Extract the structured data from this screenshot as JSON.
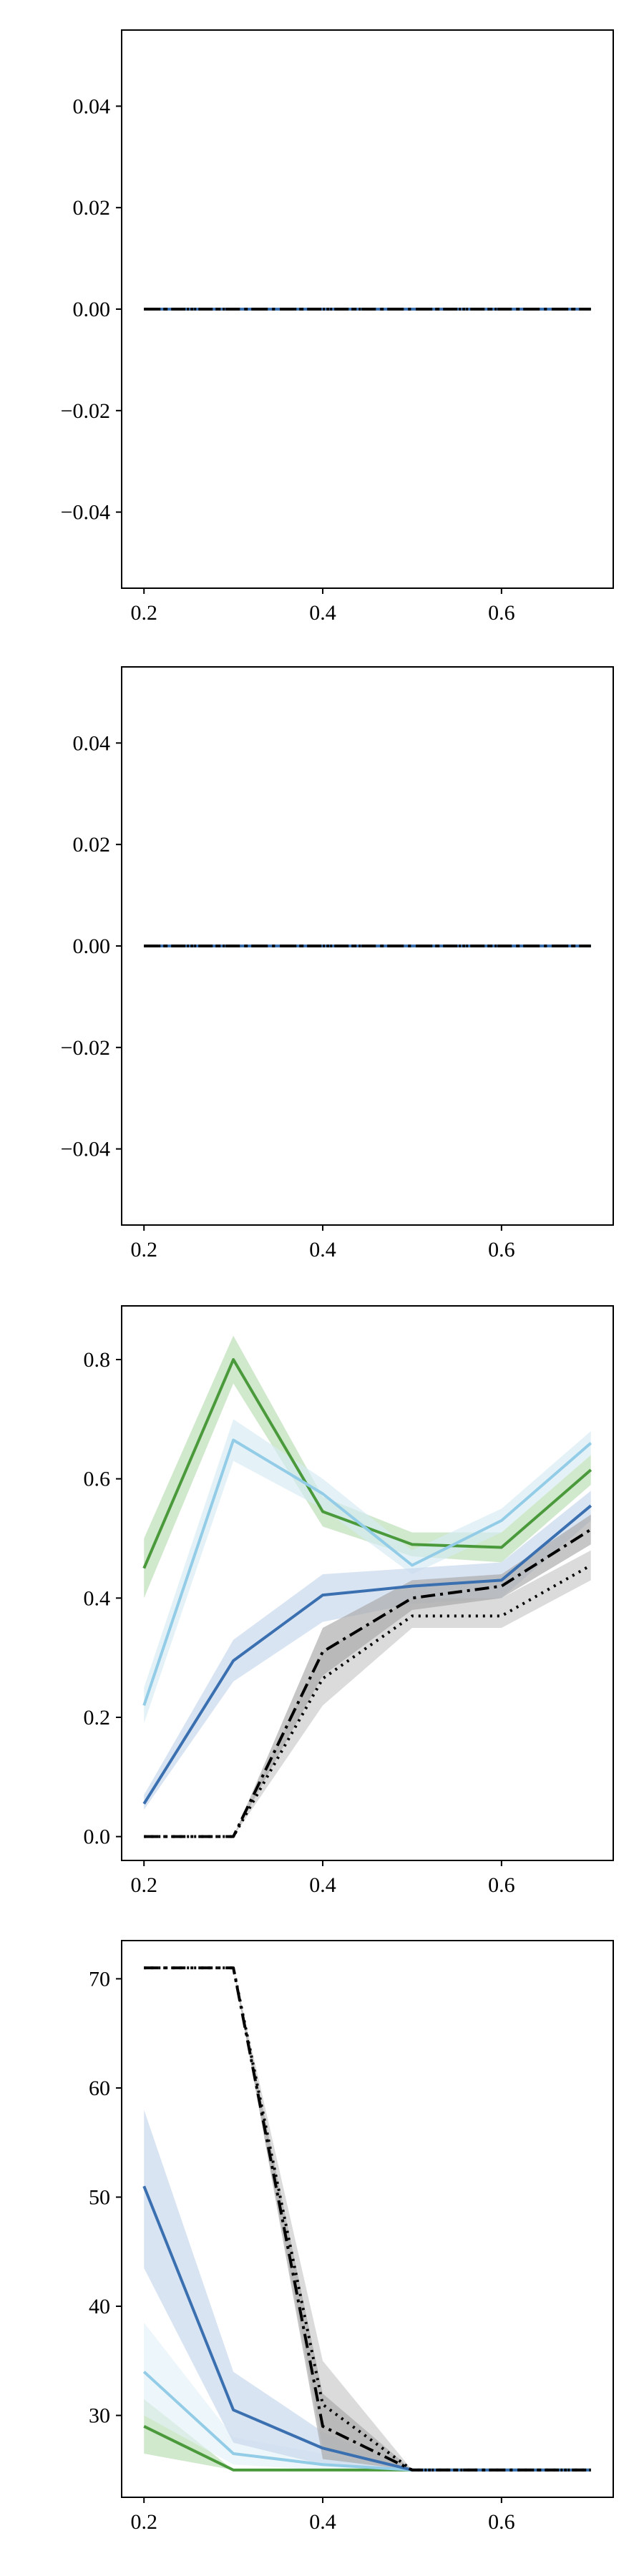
{
  "chart_data": [
    {
      "type": "line",
      "xlim": [
        0.175,
        0.725
      ],
      "ylim": [
        -0.055,
        0.055
      ],
      "x_ticks": [
        {
          "value": 0.2,
          "label": "0.2"
        },
        {
          "value": 0.4,
          "label": "0.4"
        },
        {
          "value": 0.6,
          "label": "0.6"
        }
      ],
      "y_ticks": [
        {
          "value": -0.04,
          "label": "−0.04"
        },
        {
          "value": -0.02,
          "label": "−0.02"
        },
        {
          "value": 0.0,
          "label": "0.00"
        },
        {
          "value": 0.02,
          "label": "0.02"
        },
        {
          "value": 0.04,
          "label": "0.04"
        }
      ],
      "x": [
        0.2,
        0.3,
        0.4,
        0.5,
        0.6,
        0.7
      ],
      "series": [
        {
          "color": "#4a9a3c",
          "dash": "solid",
          "values": [
            0,
            0,
            0,
            0,
            0,
            0
          ]
        },
        {
          "color": "#93cce6",
          "dash": "solid",
          "values": [
            0,
            0,
            0,
            0,
            0,
            0
          ]
        },
        {
          "color": "#3a6fb0",
          "dash": "solid",
          "values": [
            0,
            0,
            0,
            0,
            0,
            0
          ]
        },
        {
          "color": "#000000",
          "dash": "dotted",
          "values": [
            0,
            0,
            0,
            0,
            0,
            0
          ]
        },
        {
          "color": "#000000",
          "dash": "dashdot",
          "values": [
            0,
            0,
            0,
            0,
            0,
            0
          ]
        }
      ]
    },
    {
      "type": "line",
      "xlim": [
        0.175,
        0.725
      ],
      "ylim": [
        -0.055,
        0.055
      ],
      "x_ticks": [
        {
          "value": 0.2,
          "label": "0.2"
        },
        {
          "value": 0.4,
          "label": "0.4"
        },
        {
          "value": 0.6,
          "label": "0.6"
        }
      ],
      "y_ticks": [
        {
          "value": -0.04,
          "label": "−0.04"
        },
        {
          "value": -0.02,
          "label": "−0.02"
        },
        {
          "value": 0.0,
          "label": "0.00"
        },
        {
          "value": 0.02,
          "label": "0.02"
        },
        {
          "value": 0.04,
          "label": "0.04"
        }
      ],
      "x": [
        0.2,
        0.3,
        0.4,
        0.5,
        0.6,
        0.7
      ],
      "series": [
        {
          "color": "#4a9a3c",
          "dash": "solid",
          "values": [
            0,
            0,
            0,
            0,
            0,
            0
          ]
        },
        {
          "color": "#93cce6",
          "dash": "solid",
          "values": [
            0,
            0,
            0,
            0,
            0,
            0
          ]
        },
        {
          "color": "#3a6fb0",
          "dash": "solid",
          "values": [
            0,
            0,
            0,
            0,
            0,
            0
          ]
        },
        {
          "color": "#000000",
          "dash": "dotted",
          "values": [
            0,
            0,
            0,
            0,
            0,
            0
          ]
        },
        {
          "color": "#000000",
          "dash": "dashdot",
          "values": [
            0,
            0,
            0,
            0,
            0,
            0
          ]
        }
      ]
    },
    {
      "type": "line",
      "xlim": [
        0.175,
        0.725
      ],
      "ylim": [
        -0.04,
        0.89
      ],
      "x_ticks": [
        {
          "value": 0.2,
          "label": "0.2"
        },
        {
          "value": 0.4,
          "label": "0.4"
        },
        {
          "value": 0.6,
          "label": "0.6"
        }
      ],
      "y_ticks": [
        {
          "value": 0.0,
          "label": "0.0"
        },
        {
          "value": 0.2,
          "label": "0.2"
        },
        {
          "value": 0.4,
          "label": "0.4"
        },
        {
          "value": 0.6,
          "label": "0.6"
        },
        {
          "value": 0.8,
          "label": "0.8"
        }
      ],
      "x": [
        0.2,
        0.3,
        0.4,
        0.5,
        0.6,
        0.7
      ],
      "series": [
        {
          "color": "#4a9a3c",
          "fill": "#b7dcb0",
          "dash": "solid",
          "values": [
            0.45,
            0.8,
            0.545,
            0.49,
            0.485,
            0.615
          ],
          "lower": [
            0.4,
            0.76,
            0.52,
            0.47,
            0.46,
            0.59
          ],
          "upper": [
            0.5,
            0.84,
            0.57,
            0.51,
            0.51,
            0.64
          ]
        },
        {
          "color": "#93cce6",
          "fill": "#d6ebf5",
          "dash": "solid",
          "values": [
            0.22,
            0.665,
            0.575,
            0.455,
            0.53,
            0.66
          ],
          "lower": [
            0.19,
            0.63,
            0.55,
            0.44,
            0.51,
            0.64
          ],
          "upper": [
            0.25,
            0.7,
            0.6,
            0.48,
            0.55,
            0.68
          ]
        },
        {
          "color": "#3a6fb0",
          "fill": "#c5d6ec",
          "dash": "solid",
          "values": [
            0.055,
            0.295,
            0.405,
            0.42,
            0.43,
            0.555
          ],
          "lower": [
            0.045,
            0.26,
            0.36,
            0.39,
            0.4,
            0.53
          ],
          "upper": [
            0.07,
            0.33,
            0.44,
            0.45,
            0.46,
            0.58
          ]
        },
        {
          "color": "#000000",
          "fill": "#c8c8c8",
          "dash": "dotted",
          "values": [
            0.0,
            0.0,
            0.265,
            0.37,
            0.37,
            0.455
          ],
          "lower": [
            0.0,
            0.0,
            0.22,
            0.35,
            0.35,
            0.43
          ],
          "upper": [
            0.0,
            0.0,
            0.31,
            0.4,
            0.4,
            0.48
          ]
        },
        {
          "color": "#000000",
          "fill": "#a8a8a8",
          "dash": "dashdot",
          "values": [
            0.0,
            0.0,
            0.31,
            0.4,
            0.42,
            0.515
          ],
          "lower": [
            0.0,
            0.0,
            0.27,
            0.38,
            0.4,
            0.49
          ],
          "upper": [
            0.0,
            0.0,
            0.35,
            0.43,
            0.44,
            0.54
          ]
        }
      ]
    },
    {
      "type": "line",
      "xlim": [
        0.175,
        0.725
      ],
      "ylim": [
        22.5,
        73.5
      ],
      "x_ticks": [
        {
          "value": 0.2,
          "label": "0.2"
        },
        {
          "value": 0.4,
          "label": "0.4"
        },
        {
          "value": 0.6,
          "label": "0.6"
        }
      ],
      "y_ticks": [
        {
          "value": 30,
          "label": "30"
        },
        {
          "value": 40,
          "label": "40"
        },
        {
          "value": 50,
          "label": "50"
        },
        {
          "value": 60,
          "label": "60"
        },
        {
          "value": 70,
          "label": "70"
        }
      ],
      "x": [
        0.2,
        0.3,
        0.4,
        0.5,
        0.6,
        0.7
      ],
      "series": [
        {
          "color": "#4a9a3c",
          "fill": "#b7dcb0",
          "dash": "solid",
          "values": [
            29.0,
            25.0,
            25.0,
            25.0,
            25.0,
            25.0
          ],
          "lower": [
            26.5,
            25.0,
            25.0,
            25.0,
            25.0,
            25.0
          ],
          "upper": [
            31.5,
            25.0,
            25.0,
            25.0,
            25.0,
            25.0
          ]
        },
        {
          "color": "#93cce6",
          "fill": "#e4f1f8",
          "dash": "solid",
          "values": [
            34.0,
            26.5,
            25.5,
            25.0,
            25.0,
            25.0
          ],
          "lower": [
            30.0,
            25.5,
            25.0,
            25.0,
            25.0,
            25.0
          ],
          "upper": [
            38.5,
            28.0,
            26.5,
            25.0,
            25.0,
            25.0
          ]
        },
        {
          "color": "#3a6fb0",
          "fill": "#c5d6ec",
          "dash": "solid",
          "values": [
            51.0,
            30.5,
            27.0,
            25.0,
            25.0,
            25.0
          ],
          "lower": [
            43.5,
            27.5,
            25.5,
            25.0,
            25.0,
            25.0
          ],
          "upper": [
            58.0,
            34.0,
            28.5,
            25.0,
            25.0,
            25.0
          ]
        },
        {
          "color": "#000000",
          "fill": "#c8c8c8",
          "dash": "dotted",
          "values": [
            71.0,
            71.0,
            31.0,
            25.0,
            25.0,
            25.0
          ],
          "lower": [
            71.0,
            71.0,
            27.0,
            25.0,
            25.0,
            25.0
          ],
          "upper": [
            71.0,
            71.0,
            35.0,
            25.0,
            25.0,
            25.0
          ]
        },
        {
          "color": "#000000",
          "fill": "#a8a8a8",
          "dash": "dashdot",
          "values": [
            71.0,
            71.0,
            29.0,
            25.0,
            25.0,
            25.0
          ],
          "lower": [
            71.0,
            71.0,
            26.0,
            25.0,
            25.0,
            25.0
          ],
          "upper": [
            71.0,
            71.0,
            32.0,
            25.0,
            25.0,
            25.0
          ]
        }
      ]
    }
  ]
}
